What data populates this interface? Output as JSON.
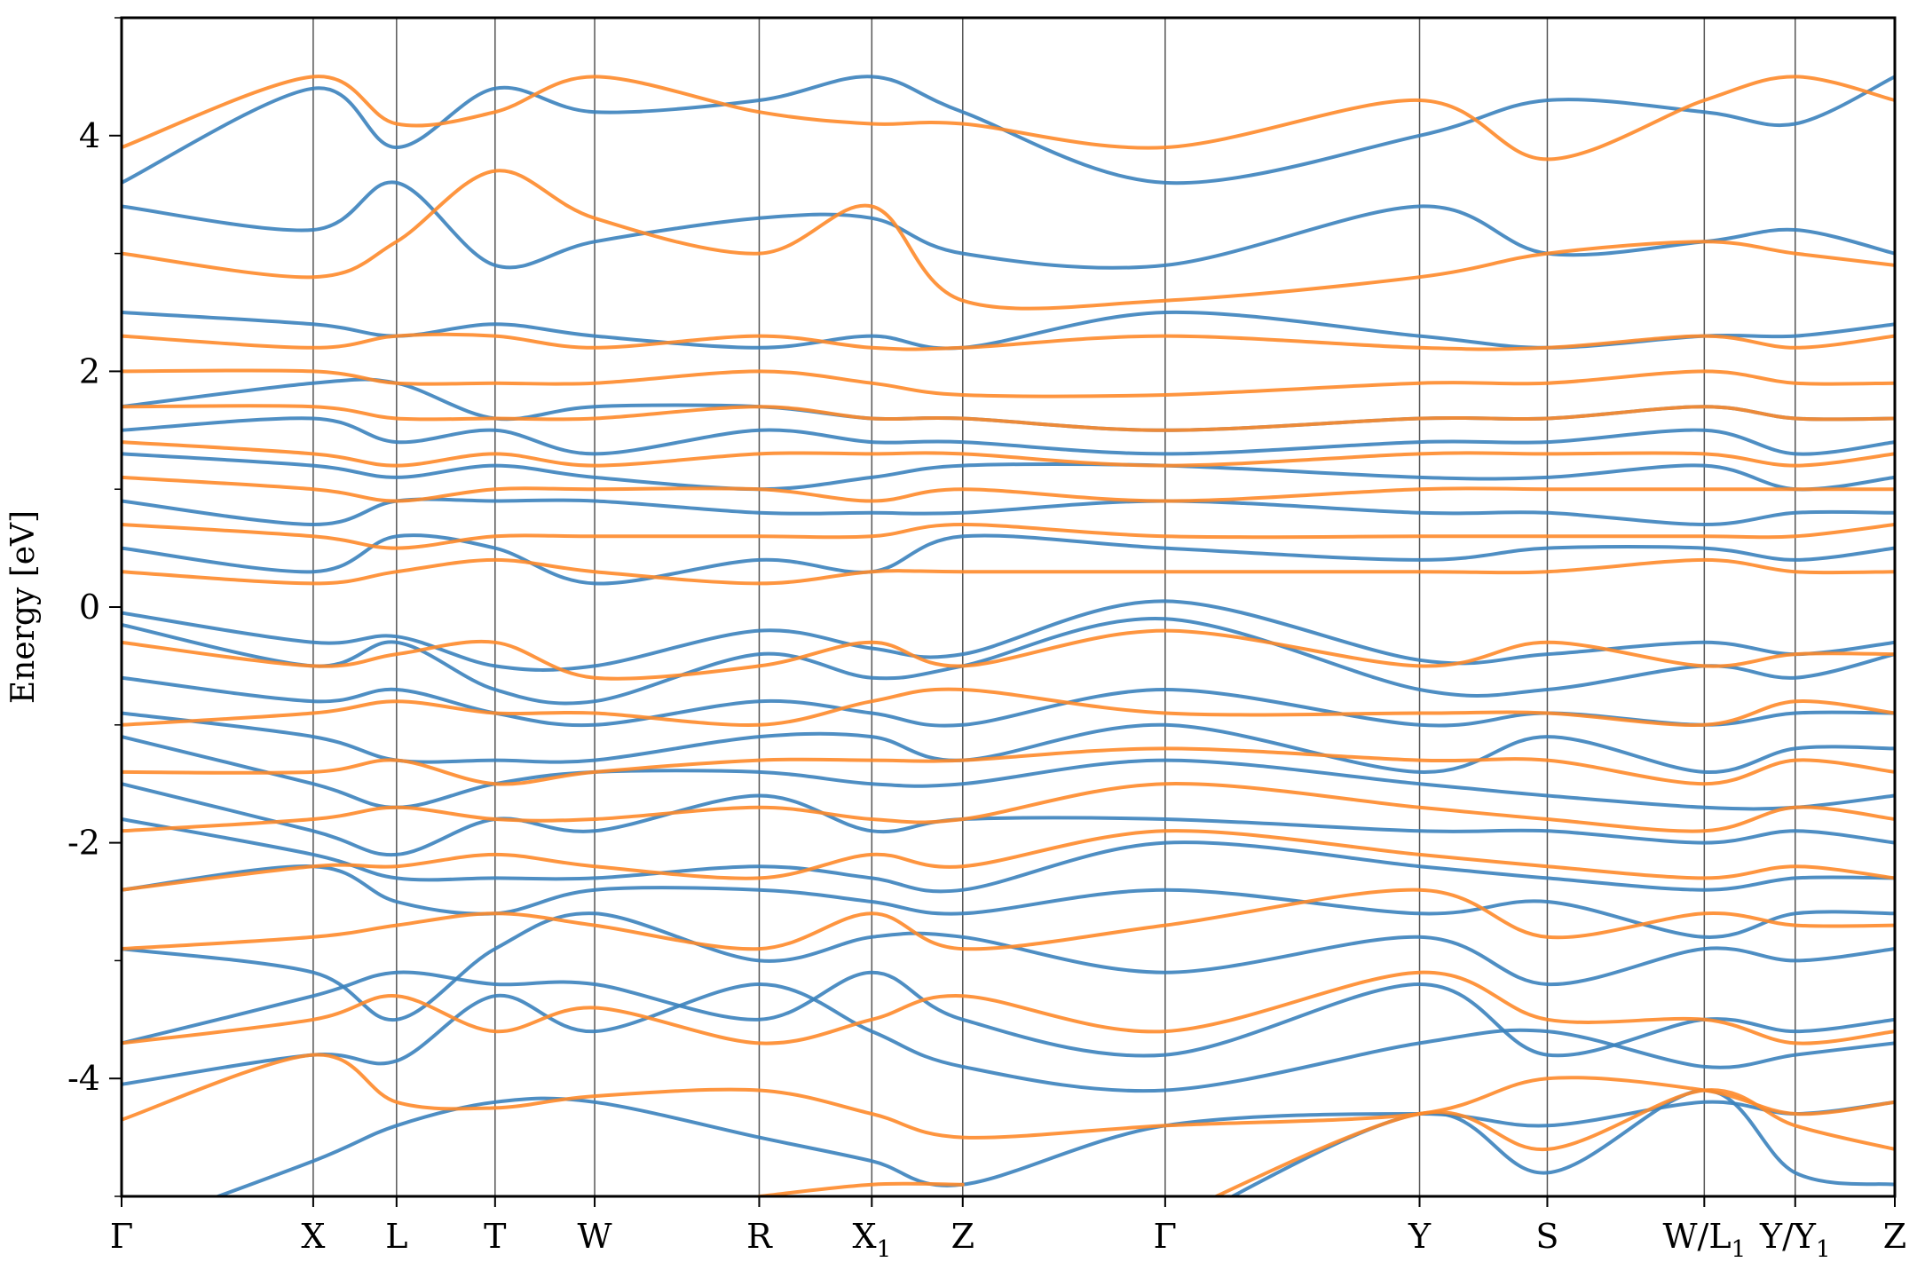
{
  "chart_data": {
    "type": "line",
    "ylabel": "Energy [eV]",
    "ylim": [
      -5,
      5
    ],
    "xlim": [
      0,
      16.38
    ],
    "y_ticks": [
      -4,
      -2,
      0,
      2,
      4
    ],
    "y_tick_labels": [
      "-4",
      "-2",
      "0",
      "2",
      "4"
    ],
    "y_minor_ticks": [
      -5,
      -3,
      -1,
      1,
      3,
      5
    ],
    "k_points": [
      {
        "label": "Γ",
        "sub": "",
        "x": 0
      },
      {
        "label": "X",
        "sub": "",
        "x": 1.77
      },
      {
        "label": "L",
        "sub": "",
        "x": 2.54
      },
      {
        "label": "T",
        "sub": "",
        "x": 3.45
      },
      {
        "label": "W",
        "sub": "",
        "x": 4.37
      },
      {
        "label": "R",
        "sub": "",
        "x": 5.89
      },
      {
        "label": "X",
        "sub": "1",
        "x": 6.93
      },
      {
        "label": "Z",
        "sub": "",
        "x": 7.77
      },
      {
        "label": "Γ",
        "sub": "",
        "x": 9.64
      },
      {
        "label": "Y",
        "sub": "",
        "x": 11.99
      },
      {
        "label": "S",
        "sub": "",
        "x": 13.17
      },
      {
        "label": "W/L",
        "sub": "1",
        "x": 14.62
      },
      {
        "label": "Y/Y",
        "sub": "1",
        "x": 15.46
      },
      {
        "label": "Z",
        "sub": "",
        "x": 16.38
      }
    ],
    "series_colors": {
      "spin_a": "#3b82bd",
      "spin_b": "#fe8a2a"
    },
    "series": [
      {
        "key": "spin_a",
        "color": "#3b82bd",
        "values": [
          [
            -4.05,
            -3.8,
            -3.85,
            -3.3,
            -3.6,
            -3.2,
            -3.6,
            -3.9,
            -4.1,
            -3.7,
            -3.6,
            -3.9,
            -3.8,
            -3.7
          ],
          [
            -3.7,
            -3.3,
            -3.1,
            -3.2,
            -3.2,
            -3.5,
            -3.1,
            -3.5,
            -3.8,
            -3.2,
            -3.8,
            -3.5,
            -3.6,
            -3.5
          ],
          [
            -2.9,
            -3.1,
            -3.5,
            -2.9,
            -2.6,
            -3.0,
            -2.8,
            -2.8,
            -3.1,
            -2.8,
            -3.2,
            -2.9,
            -3.0,
            -2.9
          ],
          [
            -2.4,
            -2.2,
            -2.5,
            -2.6,
            -2.4,
            -2.4,
            -2.5,
            -2.6,
            -2.4,
            -2.6,
            -2.5,
            -2.8,
            -2.6,
            -2.6
          ],
          [
            -1.8,
            -2.1,
            -2.3,
            -2.3,
            -2.3,
            -2.2,
            -2.3,
            -2.4,
            -2.0,
            -2.2,
            -2.3,
            -2.4,
            -2.3,
            -2.3
          ],
          [
            -1.5,
            -1.9,
            -2.1,
            -1.8,
            -1.9,
            -1.6,
            -1.9,
            -1.8,
            -1.8,
            -1.9,
            -1.9,
            -2.0,
            -1.9,
            -2.0
          ],
          [
            -1.1,
            -1.5,
            -1.7,
            -1.5,
            -1.4,
            -1.4,
            -1.5,
            -1.5,
            -1.3,
            -1.5,
            -1.6,
            -1.7,
            -1.7,
            -1.6
          ],
          [
            -0.9,
            -1.1,
            -1.3,
            -1.3,
            -1.3,
            -1.1,
            -1.1,
            -1.3,
            -1.0,
            -1.4,
            -1.1,
            -1.4,
            -1.2,
            -1.2
          ],
          [
            -0.6,
            -0.8,
            -0.7,
            -0.9,
            -1.0,
            -0.8,
            -0.9,
            -1.0,
            -0.7,
            -1.0,
            -0.9,
            -1.0,
            -0.9,
            -0.9
          ],
          [
            -0.15,
            -0.5,
            -0.3,
            -0.7,
            -0.8,
            -0.4,
            -0.6,
            -0.5,
            -0.1,
            -0.7,
            -0.7,
            -0.5,
            -0.6,
            -0.4
          ],
          [
            -0.05,
            -0.3,
            -0.25,
            -0.5,
            -0.5,
            -0.2,
            -0.35,
            -0.4,
            0.05,
            -0.45,
            -0.4,
            -0.3,
            -0.4,
            -0.3
          ],
          [
            0.5,
            0.3,
            0.6,
            0.5,
            0.2,
            0.4,
            0.3,
            0.6,
            0.5,
            0.4,
            0.5,
            0.5,
            0.4,
            0.5
          ],
          [
            0.9,
            0.7,
            0.9,
            0.9,
            0.9,
            0.8,
            0.8,
            0.8,
            0.9,
            0.8,
            0.8,
            0.7,
            0.8,
            0.8
          ],
          [
            1.3,
            1.2,
            1.1,
            1.2,
            1.1,
            1.0,
            1.1,
            1.2,
            1.2,
            1.1,
            1.1,
            1.2,
            1.0,
            1.1
          ],
          [
            1.5,
            1.6,
            1.4,
            1.5,
            1.3,
            1.5,
            1.4,
            1.4,
            1.3,
            1.4,
            1.4,
            1.5,
            1.3,
            1.4
          ],
          [
            1.7,
            1.9,
            1.9,
            1.6,
            1.7,
            1.7,
            1.6,
            1.6,
            1.5,
            1.6,
            1.6,
            1.7,
            1.6,
            1.6
          ],
          [
            2.5,
            2.4,
            2.3,
            2.4,
            2.3,
            2.2,
            2.3,
            2.2,
            2.5,
            2.3,
            2.2,
            2.3,
            2.3,
            2.4
          ],
          [
            3.4,
            3.2,
            3.6,
            2.9,
            3.1,
            3.3,
            3.3,
            3.0,
            2.9,
            3.4,
            3.0,
            3.1,
            3.2,
            3.0
          ],
          [
            3.6,
            4.4,
            3.9,
            4.4,
            4.2,
            4.3,
            4.5,
            4.2,
            3.6,
            4.0,
            4.3,
            4.2,
            4.1,
            4.5
          ],
          [
            null,
            null,
            null,
            null,
            null,
            null,
            null,
            null,
            -5.3,
            -4.3,
            -4.8,
            -4.1,
            -4.8,
            -4.9
          ],
          [
            -5.3,
            -4.7,
            -4.4,
            -4.2,
            -4.2,
            -4.5,
            -4.7,
            -4.9,
            -4.4,
            -4.3,
            -4.4,
            -4.2,
            -4.3,
            -4.2
          ]
        ]
      },
      {
        "key": "spin_b",
        "color": "#fe8a2a",
        "values": [
          [
            -4.35,
            -3.8,
            -4.2,
            -4.25,
            -4.15,
            -4.1,
            -4.3,
            -4.5,
            -4.4,
            -4.3,
            -4.0,
            -4.1,
            -4.3,
            -4.2
          ],
          [
            -3.7,
            -3.5,
            -3.3,
            -3.6,
            -3.4,
            -3.7,
            -3.5,
            -3.3,
            -3.6,
            -3.1,
            -3.5,
            -3.5,
            -3.7,
            -3.6
          ],
          [
            -2.9,
            -2.8,
            -2.7,
            -2.6,
            -2.7,
            -2.9,
            -2.6,
            -2.9,
            -2.7,
            -2.4,
            -2.8,
            -2.6,
            -2.7,
            -2.7
          ],
          [
            -2.4,
            -2.2,
            -2.2,
            -2.1,
            -2.2,
            -2.3,
            -2.1,
            -2.2,
            -1.9,
            -2.1,
            -2.2,
            -2.3,
            -2.2,
            -2.3
          ],
          [
            -1.9,
            -1.8,
            -1.7,
            -1.8,
            -1.8,
            -1.7,
            -1.8,
            -1.8,
            -1.5,
            -1.7,
            -1.8,
            -1.9,
            -1.7,
            -1.8
          ],
          [
            -1.4,
            -1.4,
            -1.3,
            -1.5,
            -1.4,
            -1.3,
            -1.3,
            -1.3,
            -1.2,
            -1.3,
            -1.3,
            -1.5,
            -1.3,
            -1.4
          ],
          [
            -1.0,
            -0.9,
            -0.8,
            -0.9,
            -0.9,
            -1.0,
            -0.8,
            -0.7,
            -0.9,
            -0.9,
            -0.9,
            -1.0,
            -0.8,
            -0.9
          ],
          [
            -0.3,
            -0.5,
            -0.4,
            -0.3,
            -0.6,
            -0.5,
            -0.3,
            -0.5,
            -0.2,
            -0.5,
            -0.3,
            -0.5,
            -0.4,
            -0.4
          ],
          [
            0.3,
            0.2,
            0.3,
            0.4,
            0.3,
            0.2,
            0.3,
            0.3,
            0.3,
            0.3,
            0.3,
            0.4,
            0.3,
            0.3
          ],
          [
            0.7,
            0.6,
            0.5,
            0.6,
            0.6,
            0.6,
            0.6,
            0.7,
            0.6,
            0.6,
            0.6,
            0.6,
            0.6,
            0.7
          ],
          [
            1.1,
            1.0,
            0.9,
            1.0,
            1.0,
            1.0,
            0.9,
            1.0,
            0.9,
            1.0,
            1.0,
            1.0,
            1.0,
            1.0
          ],
          [
            1.4,
            1.3,
            1.2,
            1.3,
            1.2,
            1.3,
            1.3,
            1.3,
            1.2,
            1.3,
            1.3,
            1.3,
            1.2,
            1.3
          ],
          [
            1.7,
            1.7,
            1.6,
            1.6,
            1.6,
            1.7,
            1.6,
            1.6,
            1.5,
            1.6,
            1.6,
            1.7,
            1.6,
            1.6
          ],
          [
            2.0,
            2.0,
            1.9,
            1.9,
            1.9,
            2.0,
            1.9,
            1.8,
            1.8,
            1.9,
            1.9,
            2.0,
            1.9,
            1.9
          ],
          [
            2.3,
            2.2,
            2.3,
            2.3,
            2.2,
            2.3,
            2.2,
            2.2,
            2.3,
            2.2,
            2.2,
            2.3,
            2.2,
            2.3
          ],
          [
            3.0,
            2.8,
            3.1,
            3.7,
            3.3,
            3.0,
            3.4,
            2.6,
            2.6,
            2.8,
            3.0,
            3.1,
            3.0,
            2.9
          ],
          [
            3.9,
            4.5,
            4.1,
            4.2,
            4.5,
            4.2,
            4.1,
            4.1,
            3.9,
            4.3,
            3.8,
            4.3,
            4.5,
            4.3
          ],
          [
            null,
            null,
            null,
            null,
            null,
            null,
            null,
            null,
            -5.2,
            -4.3,
            -4.6,
            -4.1,
            -4.4,
            -4.6
          ],
          [
            null,
            null,
            null,
            null,
            null,
            -5.0,
            -4.9,
            -4.9,
            null,
            null,
            null,
            null,
            null,
            null
          ]
        ]
      }
    ]
  }
}
